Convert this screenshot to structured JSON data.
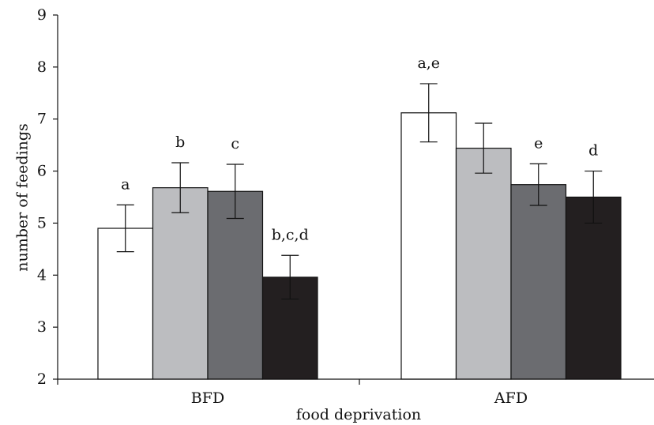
{
  "chart_data": {
    "type": "bar",
    "title": "",
    "xlabel": "food deprivation",
    "ylabel": "number of feedings",
    "ylim": [
      2,
      9
    ],
    "yticks": [
      2,
      3,
      4,
      5,
      6,
      7,
      8,
      9
    ],
    "categories": [
      "BFD",
      "AFD"
    ],
    "grid": false,
    "legend": "none",
    "series": [
      {
        "color": "#ffffff",
        "values": [
          4.9,
          7.12
        ],
        "errors": [
          0.45,
          0.56
        ],
        "labels": [
          "a",
          "a,e"
        ]
      },
      {
        "color": "#bcbdc0",
        "values": [
          5.68,
          6.44
        ],
        "errors": [
          0.48,
          0.48
        ],
        "labels": [
          "b",
          ""
        ]
      },
      {
        "color": "#6b6c70",
        "values": [
          5.61,
          5.74
        ],
        "errors": [
          0.52,
          0.4
        ],
        "labels": [
          "c",
          "e"
        ]
      },
      {
        "color": "#231f20",
        "values": [
          3.96,
          5.5
        ],
        "errors": [
          0.42,
          0.5
        ],
        "labels": [
          "b,c,d",
          "d"
        ]
      }
    ]
  }
}
